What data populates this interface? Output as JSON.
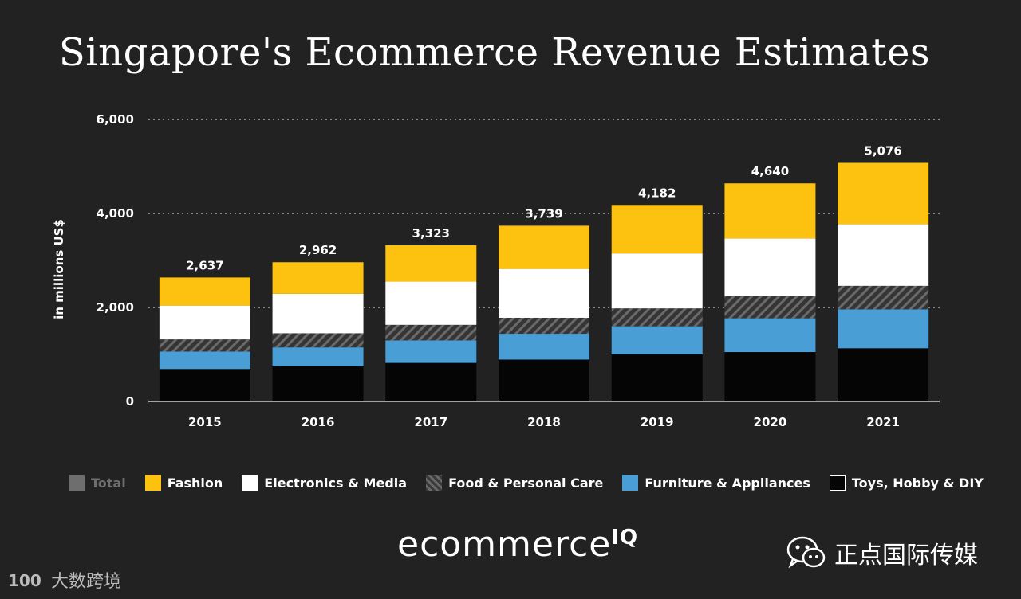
{
  "chart_data": {
    "type": "bar",
    "stacked": true,
    "title": "Singapore's Ecommerce Revenue Estimates",
    "ylabel": "in millions US$",
    "xlabel": "",
    "ylim": [
      0,
      6000
    ],
    "yticks": [
      0,
      2000,
      4000,
      6000
    ],
    "ytick_labels": [
      "0",
      "2,000",
      "4,000",
      "6,000"
    ],
    "categories": [
      "2015",
      "2016",
      "2017",
      "2018",
      "2019",
      "2020",
      "2021"
    ],
    "totals": [
      2637,
      2962,
      3323,
      3739,
      4182,
      4640,
      5076
    ],
    "total_labels": [
      "2,637",
      "2,962",
      "3,323",
      "3,739",
      "4,182",
      "4,640",
      "5,076"
    ],
    "series": [
      {
        "name": "Toys, Hobby & DIY",
        "key": "toys",
        "values": [
          690,
          750,
          820,
          890,
          1000,
          1050,
          1130
        ]
      },
      {
        "name": "Furniture & Appliances",
        "key": "furniture",
        "values": [
          370,
          400,
          480,
          550,
          600,
          720,
          830
        ]
      },
      {
        "name": "Food & Personal Care",
        "key": "food",
        "values": [
          260,
          300,
          330,
          340,
          380,
          470,
          500
        ]
      },
      {
        "name": "Electronics & Media",
        "key": "electronics",
        "values": [
          720,
          840,
          920,
          1040,
          1170,
          1230,
          1310
        ]
      },
      {
        "name": "Fashion",
        "key": "fashion",
        "values": [
          597,
          672,
          773,
          919,
          1032,
          1170,
          1306
        ]
      }
    ],
    "colors": {
      "fashion": "#fdc20f",
      "electronics": "#ffffff",
      "furniture": "#4a9ed6",
      "toys": "#050505",
      "food_dark": "#353535",
      "food_light": "#6a6a6a",
      "total": "#6e6e6e",
      "grid": "#aaaaaa",
      "text": "#ffffff"
    },
    "grid": true,
    "legend_position": "bottom"
  },
  "legend": [
    {
      "key": "total",
      "label": "Total"
    },
    {
      "key": "fashion",
      "label": "Fashion"
    },
    {
      "key": "electronics",
      "label": "Electronics & Media"
    },
    {
      "key": "food",
      "label": "Food & Personal Care"
    },
    {
      "key": "furniture",
      "label": "Furniture & Appliances"
    },
    {
      "key": "toys",
      "label": "Toys, Hobby & DIY"
    }
  ],
  "brand": {
    "name": "ecommerce",
    "suffix": "IQ"
  },
  "watermarks": {
    "right_text": "正点国际传媒",
    "right_icon": "wechat-icon",
    "left_text": "大数跨境",
    "left_logo_text": "100"
  }
}
